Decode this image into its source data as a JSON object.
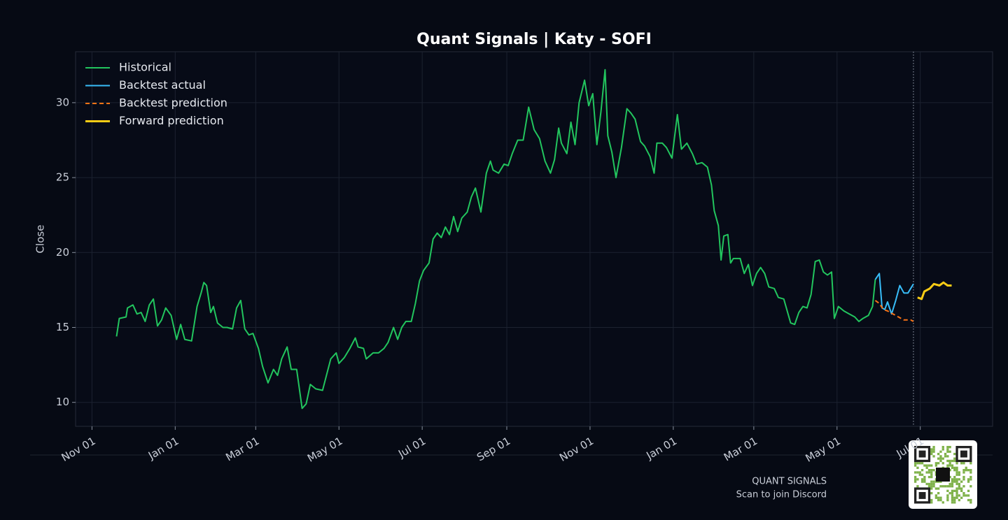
{
  "chart_data": {
    "type": "line",
    "title": "Quant Signals | Katy - SOFI",
    "y_label": "Close",
    "xlim": [
      -12,
      660
    ],
    "ylim": [
      8.4,
      33.4
    ],
    "xticks": [
      {
        "value": 0,
        "label": "Nov 01"
      },
      {
        "value": 61,
        "label": "Jan 01"
      },
      {
        "value": 120,
        "label": "Mar 01"
      },
      {
        "value": 181,
        "label": "May 01"
      },
      {
        "value": 242,
        "label": "Jul 01"
      },
      {
        "value": 304,
        "label": "Sep 01"
      },
      {
        "value": 365,
        "label": "Nov 01"
      },
      {
        "value": 426,
        "label": "Jan 01"
      },
      {
        "value": 485,
        "label": "Mar 01"
      },
      {
        "value": 546,
        "label": "May 01"
      },
      {
        "value": 607,
        "label": "Jul 01"
      }
    ],
    "yticks": [
      10,
      15,
      20,
      25,
      30
    ],
    "grid": true,
    "legend": "upper left",
    "split_x": 602,
    "series": [
      {
        "name": "Historical",
        "color": "#22c55e",
        "style": "solid",
        "width": 2,
        "x": [
          18,
          20,
          25,
          26,
          30,
          33,
          36,
          39,
          42,
          45,
          48,
          51,
          54,
          58,
          62,
          65,
          68,
          73,
          77,
          80,
          82,
          84,
          87,
          89,
          92,
          96,
          99,
          103,
          106,
          109,
          112,
          115,
          118,
          122,
          125,
          129,
          133,
          136,
          139,
          143,
          146,
          150,
          154,
          157,
          160,
          164,
          169,
          175,
          179,
          181,
          185,
          189,
          193,
          195,
          199,
          201,
          206,
          210,
          214,
          217,
          221,
          224,
          227,
          230,
          234,
          237,
          240,
          243,
          247,
          250,
          253,
          256,
          259,
          262,
          265,
          268,
          271,
          275,
          278,
          281,
          285,
          289,
          292,
          294,
          298,
          302,
          305,
          308,
          312,
          316,
          320,
          324,
          328,
          332,
          336,
          339,
          342,
          344,
          348,
          351,
          354,
          357,
          361,
          364,
          367,
          370,
          373,
          376,
          378,
          381,
          384,
          388,
          392,
          395,
          398,
          402,
          405,
          409,
          412,
          414,
          418,
          421,
          425,
          429,
          432,
          436,
          440,
          443,
          447,
          451,
          454,
          456,
          459,
          461,
          463,
          466,
          468,
          470,
          475,
          478,
          481,
          484,
          487,
          490,
          493,
          496,
          500,
          503,
          507,
          512,
          515,
          518,
          521,
          524,
          527,
          530,
          533,
          536,
          539,
          542,
          544,
          547,
          551,
          555,
          559,
          562,
          565,
          569,
          572,
          574
        ],
        "values": [
          14.4,
          15.6,
          15.7,
          16.3,
          16.5,
          15.9,
          16.0,
          15.4,
          16.5,
          16.9,
          15.1,
          15.5,
          16.3,
          15.8,
          14.2,
          15.2,
          14.2,
          14.1,
          16.4,
          17.3,
          18.0,
          17.8,
          16.0,
          16.4,
          15.3,
          15.0,
          15.0,
          14.9,
          16.3,
          16.8,
          14.9,
          14.5,
          14.6,
          13.6,
          12.4,
          11.3,
          12.2,
          11.8,
          12.9,
          13.7,
          12.2,
          12.2,
          9.6,
          9.9,
          11.2,
          10.9,
          10.8,
          12.9,
          13.3,
          12.6,
          13.0,
          13.6,
          14.3,
          13.7,
          13.6,
          12.9,
          13.3,
          13.3,
          13.6,
          14.0,
          15.0,
          14.2,
          15.0,
          15.4,
          15.4,
          16.6,
          18.1,
          18.8,
          19.3,
          20.9,
          21.3,
          21.0,
          21.7,
          21.2,
          22.4,
          21.4,
          22.3,
          22.7,
          23.7,
          24.3,
          22.7,
          25.3,
          26.1,
          25.5,
          25.3,
          25.9,
          25.8,
          26.6,
          27.5,
          27.5,
          29.7,
          28.2,
          27.6,
          26.1,
          25.3,
          26.2,
          28.3,
          27.3,
          26.6,
          28.7,
          27.2,
          30.0,
          31.5,
          29.8,
          30.6,
          27.2,
          29.4,
          32.2,
          27.8,
          26.7,
          25.0,
          27.0,
          29.6,
          29.3,
          28.9,
          27.4,
          27.1,
          26.4,
          25.3,
          27.3,
          27.3,
          27.0,
          26.3,
          29.2,
          26.9,
          27.3,
          26.6,
          25.9,
          26.0,
          25.7,
          24.5,
          22.8,
          21.8,
          19.5,
          21.1,
          21.2,
          19.3,
          19.6,
          19.6,
          18.6,
          19.2,
          17.8,
          18.6,
          19.0,
          18.6,
          17.7,
          17.6,
          17.0,
          16.9,
          15.3,
          15.2,
          16.0,
          16.4,
          16.3,
          17.2,
          19.4,
          19.5,
          18.7,
          18.5,
          18.7,
          15.6,
          16.4,
          16.1,
          15.9,
          15.7,
          15.4,
          15.6,
          15.8,
          16.4,
          18.2
        ]
      },
      {
        "name": "Backtest actual",
        "color": "#38bdf8",
        "style": "solid",
        "width": 2,
        "x": [
          574,
          577,
          579,
          581,
          583,
          586,
          589,
          592,
          595,
          598,
          602
        ],
        "values": [
          18.2,
          18.6,
          16.3,
          16.2,
          16.7,
          15.9,
          16.8,
          17.8,
          17.3,
          17.3,
          17.9
        ]
      },
      {
        "name": "Backtest prediction",
        "color": "#f97316",
        "style": "dashed",
        "width": 2,
        "x": [
          574,
          577,
          580,
          583,
          587,
          591,
          595,
          600,
          602
        ],
        "values": [
          16.8,
          16.6,
          16.2,
          16.1,
          15.9,
          15.7,
          15.5,
          15.5,
          15.4
        ]
      },
      {
        "name": "Forward prediction",
        "color": "#facc15",
        "style": "solid",
        "width": 3,
        "x": [
          605,
          608,
          610,
          614,
          617,
          621,
          624,
          627,
          630
        ],
        "values": [
          17.0,
          16.9,
          17.4,
          17.6,
          17.9,
          17.8,
          18.0,
          17.8,
          17.8
        ]
      }
    ]
  },
  "footer": {
    "brand": "QUANT SIGNALS",
    "cta": "Scan to join Discord"
  }
}
